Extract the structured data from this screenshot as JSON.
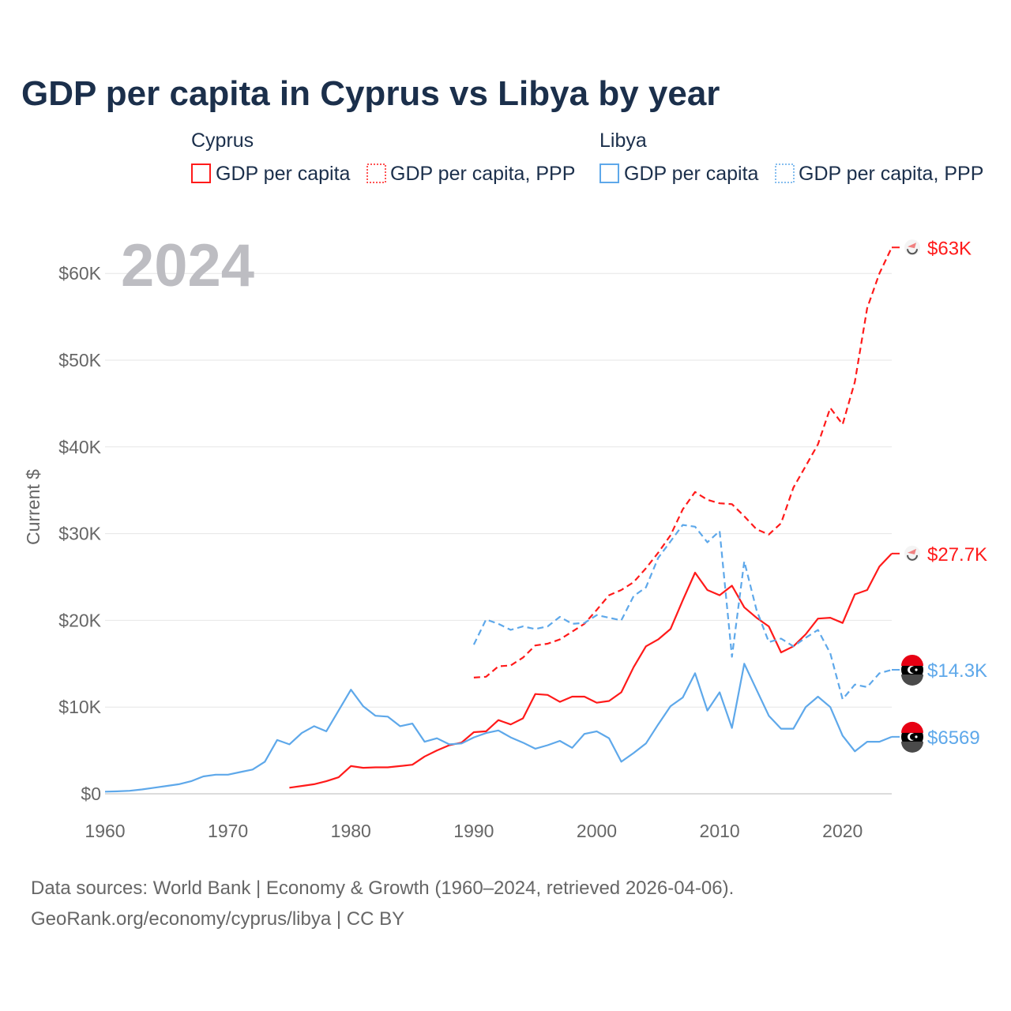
{
  "colors": {
    "cyprus": "#ff1a1a",
    "libya": "#5ea8ea",
    "title": "#1b2f4b",
    "grid": "#e6e6e6",
    "muted": "#666666"
  },
  "chart_data": {
    "type": "line",
    "title": "GDP per capita in Cyprus vs Libya by year",
    "year_watermark": "2024",
    "xlabel": "",
    "ylabel": "Current $",
    "xlim": [
      1960,
      2024
    ],
    "ylim": [
      0,
      65000
    ],
    "x_ticks": [
      1960,
      1970,
      1980,
      1990,
      2000,
      2010,
      2020
    ],
    "x_tick_labels": [
      "1960",
      "1970",
      "1980",
      "1990",
      "2000",
      "2010",
      "2020"
    ],
    "y_ticks": [
      0,
      10000,
      20000,
      30000,
      40000,
      50000,
      60000
    ],
    "y_tick_labels": [
      "$0",
      "$10K",
      "$20K",
      "$30K",
      "$40K",
      "$50K",
      "$60K"
    ],
    "grid": true,
    "legend": {
      "placement": "top",
      "groups": [
        {
          "name": "Cyprus",
          "items": [
            {
              "label": "GDP per capita",
              "style": "solid"
            },
            {
              "label": "GDP per capita, PPP",
              "style": "dotted"
            }
          ]
        },
        {
          "name": "Libya",
          "items": [
            {
              "label": "GDP per capita",
              "style": "solid"
            },
            {
              "label": "GDP per capita, PPP",
              "style": "dotted"
            }
          ]
        }
      ]
    },
    "series": [
      {
        "name": "Cyprus GDP per capita",
        "country": "cyprus",
        "dash": false,
        "start_year": 1975,
        "end_label": "$27.7K",
        "values": [
          700,
          900,
          1100,
          1450,
          1900,
          3200,
          3000,
          3050,
          3050,
          3200,
          3350,
          4300,
          5000,
          5600,
          5900,
          7100,
          7200,
          8500,
          8000,
          8700,
          11500,
          11400,
          10600,
          11200,
          11200,
          10500,
          10700,
          11700,
          14600,
          17000,
          17800,
          19000,
          22300,
          25500,
          23500,
          22900,
          24000,
          21500,
          20300,
          19300,
          16300,
          17000,
          18400,
          20200,
          20300,
          19700,
          23000,
          23500,
          26200,
          27700
        ]
      },
      {
        "name": "Cyprus GDP per capita, PPP",
        "country": "cyprus",
        "dash": true,
        "start_year": 1990,
        "end_label": "$63K",
        "values": [
          13400,
          13500,
          14700,
          14800,
          15700,
          17100,
          17300,
          17800,
          18700,
          19600,
          21200,
          22900,
          23500,
          24400,
          26000,
          27800,
          29800,
          32800,
          34800,
          33900,
          33500,
          33400,
          32000,
          30500,
          29900,
          31200,
          35300,
          37800,
          40300,
          44500,
          42600,
          47500,
          56000,
          60000,
          63000
        ]
      },
      {
        "name": "Libya GDP per capita",
        "country": "libya",
        "dash": false,
        "start_year": 1960,
        "end_label": "$6569",
        "values": [
          250,
          280,
          350,
          500,
          700,
          900,
          1100,
          1450,
          2000,
          2200,
          2200,
          2500,
          2800,
          3700,
          6200,
          5700,
          7000,
          7800,
          7200,
          9600,
          12000,
          10100,
          9000,
          8900,
          7800,
          8100,
          6000,
          6400,
          5700,
          5800,
          6500,
          7000,
          7300,
          6500,
          5900,
          5200,
          5600,
          6100,
          5300,
          6900,
          7200,
          6400,
          3700,
          4700,
          5800,
          8000,
          10100,
          11100,
          13900,
          9600,
          11700,
          7600,
          15000,
          12000,
          9000,
          7500,
          7500,
          10000,
          11200,
          10000,
          6700,
          4900,
          6000,
          6000,
          6569
        ]
      },
      {
        "name": "Libya GDP per capita, PPP",
        "country": "libya",
        "dash": true,
        "start_year": 1990,
        "end_label": "$14.3K",
        "values": [
          17200,
          20100,
          19600,
          18900,
          19300,
          19000,
          19300,
          20400,
          19600,
          19700,
          20600,
          20300,
          20000,
          22800,
          23800,
          27200,
          29100,
          31000,
          30800,
          29000,
          30300,
          15800,
          26800,
          21200,
          17500,
          17900,
          17000,
          18000,
          18900,
          16200,
          10900,
          12600,
          12300,
          13900,
          14300
        ]
      }
    ],
    "footer": [
      "Data sources: World Bank | Economy & Growth (1960–2024, retrieved 2026-04-06).",
      "GeoRank.org/economy/cyprus/libya | CC BY"
    ]
  }
}
